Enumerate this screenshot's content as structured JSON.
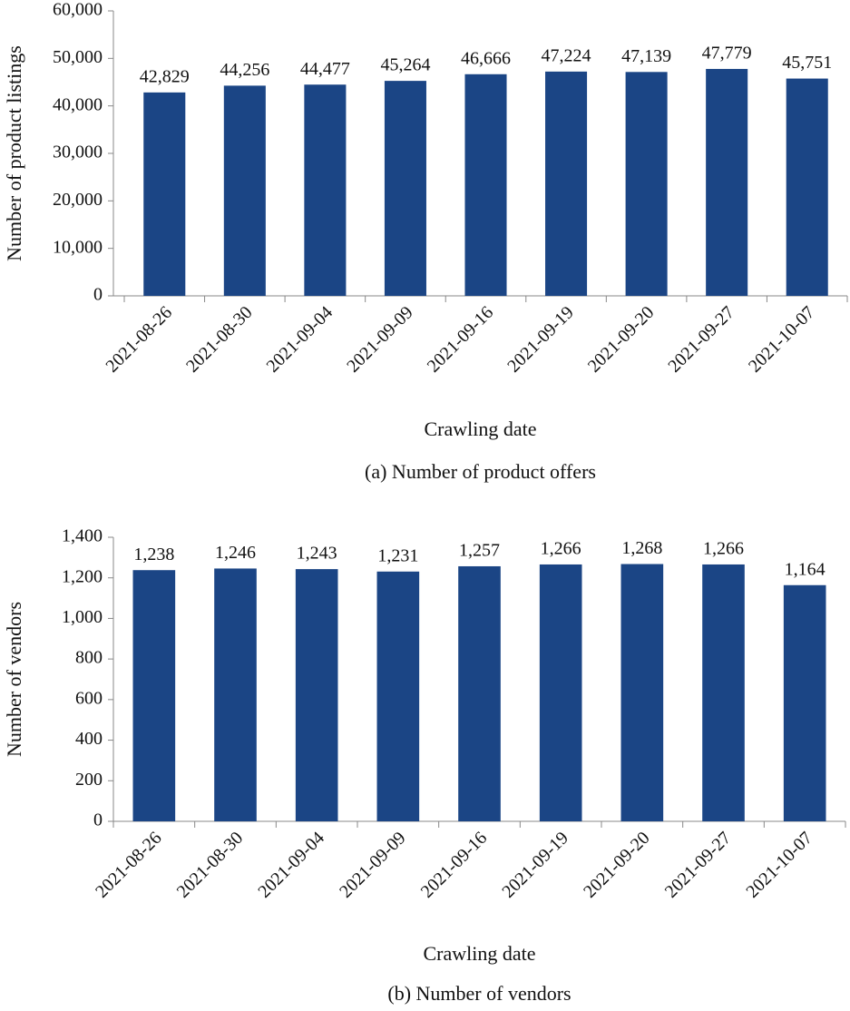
{
  "chart_data": [
    {
      "type": "bar",
      "caption": "(a) Number of product offers",
      "xlabel": "Crawling date",
      "ylabel": "Number of product listings",
      "categories": [
        "2021-08-26",
        "2021-08-30",
        "2021-09-04",
        "2021-09-09",
        "2021-09-16",
        "2021-09-19",
        "2021-09-20",
        "2021-09-27",
        "2021-10-07"
      ],
      "values": [
        42829,
        44256,
        44477,
        45264,
        46666,
        47224,
        47139,
        47779,
        45751
      ],
      "value_labels": [
        "42,829",
        "44,256",
        "44,477",
        "45,264",
        "46,666",
        "47,224",
        "47,139",
        "47,779",
        "45,751"
      ],
      "color": "#1b4585",
      "ylim": [
        0,
        60000
      ],
      "yticks": [
        0,
        {
          "value": 10000,
          "label": "10,000"
        },
        {
          "value": 20000,
          "label": "20,000"
        },
        {
          "value": 30000,
          "label": "30,000"
        },
        {
          "value": 40000,
          "label": "40,000"
        },
        {
          "value": 50000,
          "label": "50,000"
        },
        {
          "value": 60000,
          "label": "60,000"
        }
      ]
    },
    {
      "type": "bar",
      "caption": "(b) Number of vendors",
      "xlabel": "Crawling date",
      "ylabel": "Number of vendors",
      "categories": [
        "2021-08-26",
        "2021-08-30",
        "2021-09-04",
        "2021-09-09",
        "2021-09-16",
        "2021-09-19",
        "2021-09-20",
        "2021-09-27",
        "2021-10-07"
      ],
      "values": [
        1238,
        1246,
        1243,
        1231,
        1257,
        1266,
        1268,
        1266,
        1164
      ],
      "value_labels": [
        "1,238",
        "1,246",
        "1,243",
        "1,231",
        "1,257",
        "1,266",
        "1,268",
        "1,266",
        "1,164"
      ],
      "color": "#1b4585",
      "ylim": [
        0,
        1400
      ],
      "yticks": [
        0,
        200,
        400,
        600,
        800,
        {
          "value": 1000,
          "label": "1,000"
        },
        {
          "value": 1200,
          "label": "1,200"
        },
        {
          "value": 1400,
          "label": "1,400"
        }
      ]
    }
  ]
}
